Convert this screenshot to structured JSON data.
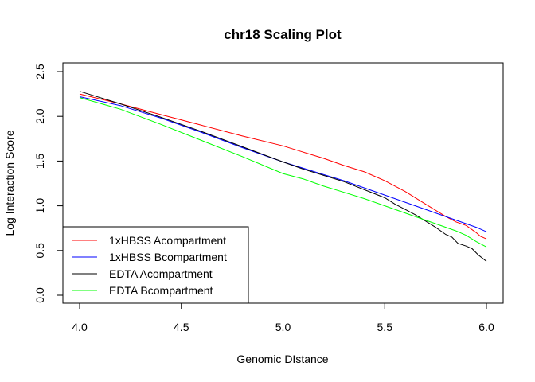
{
  "chart_data": {
    "type": "line",
    "title": "chr18 Scaling Plot",
    "xlabel": "Genomic DIstance",
    "ylabel": "Log Interaction Score",
    "xlim": [
      4.0,
      6.0
    ],
    "ylim": [
      0.0,
      2.5
    ],
    "xticks": [
      "4.0",
      "4.5",
      "5.0",
      "5.5",
      "6.0"
    ],
    "yticks": [
      "0.0",
      "0.5",
      "1.0",
      "1.5",
      "2.0",
      "2.5"
    ],
    "grid": false,
    "legend_position": "bottom-left",
    "series": [
      {
        "name": "1xHBSS Acompartment",
        "color": "#ff0000",
        "points": [
          [
            4.0,
            2.25
          ],
          [
            4.2,
            2.14
          ],
          [
            4.4,
            2.02
          ],
          [
            4.6,
            1.9
          ],
          [
            4.8,
            1.78
          ],
          [
            5.0,
            1.67
          ],
          [
            5.1,
            1.6
          ],
          [
            5.2,
            1.53
          ],
          [
            5.3,
            1.45
          ],
          [
            5.4,
            1.38
          ],
          [
            5.5,
            1.28
          ],
          [
            5.6,
            1.16
          ],
          [
            5.7,
            1.02
          ],
          [
            5.8,
            0.88
          ],
          [
            5.85,
            0.82
          ],
          [
            5.9,
            0.78
          ],
          [
            5.95,
            0.7
          ],
          [
            5.97,
            0.66
          ],
          [
            6.0,
            0.63
          ]
        ]
      },
      {
        "name": "1xHBSS Bcompartment",
        "color": "#0000ff",
        "points": [
          [
            4.0,
            2.22
          ],
          [
            4.2,
            2.12
          ],
          [
            4.4,
            1.98
          ],
          [
            4.6,
            1.82
          ],
          [
            4.8,
            1.65
          ],
          [
            5.0,
            1.49
          ],
          [
            5.1,
            1.42
          ],
          [
            5.2,
            1.35
          ],
          [
            5.3,
            1.28
          ],
          [
            5.4,
            1.2
          ],
          [
            5.5,
            1.12
          ],
          [
            5.6,
            1.04
          ],
          [
            5.7,
            0.96
          ],
          [
            5.8,
            0.88
          ],
          [
            5.85,
            0.84
          ],
          [
            5.9,
            0.8
          ],
          [
            5.95,
            0.76
          ],
          [
            6.0,
            0.71
          ]
        ]
      },
      {
        "name": "EDTA Acompartment",
        "color": "#000000",
        "points": [
          [
            4.0,
            2.28
          ],
          [
            4.2,
            2.14
          ],
          [
            4.4,
            1.99
          ],
          [
            4.6,
            1.83
          ],
          [
            4.8,
            1.66
          ],
          [
            5.0,
            1.49
          ],
          [
            5.1,
            1.41
          ],
          [
            5.2,
            1.34
          ],
          [
            5.3,
            1.27
          ],
          [
            5.4,
            1.18
          ],
          [
            5.5,
            1.09
          ],
          [
            5.55,
            1.02
          ],
          [
            5.6,
            0.96
          ],
          [
            5.65,
            0.9
          ],
          [
            5.7,
            0.83
          ],
          [
            5.75,
            0.76
          ],
          [
            5.8,
            0.68
          ],
          [
            5.83,
            0.65
          ],
          [
            5.86,
            0.58
          ],
          [
            5.9,
            0.55
          ],
          [
            5.93,
            0.52
          ],
          [
            5.96,
            0.45
          ],
          [
            6.0,
            0.38
          ]
        ]
      },
      {
        "name": "EDTA Bcompartment",
        "color": "#00ff00",
        "points": [
          [
            4.0,
            2.21
          ],
          [
            4.2,
            2.08
          ],
          [
            4.4,
            1.91
          ],
          [
            4.6,
            1.73
          ],
          [
            4.8,
            1.55
          ],
          [
            5.0,
            1.36
          ],
          [
            5.1,
            1.3
          ],
          [
            5.2,
            1.22
          ],
          [
            5.3,
            1.15
          ],
          [
            5.4,
            1.08
          ],
          [
            5.5,
            1.0
          ],
          [
            5.6,
            0.92
          ],
          [
            5.7,
            0.84
          ],
          [
            5.8,
            0.76
          ],
          [
            5.85,
            0.72
          ],
          [
            5.9,
            0.67
          ],
          [
            5.95,
            0.6
          ],
          [
            6.0,
            0.54
          ]
        ]
      }
    ]
  }
}
